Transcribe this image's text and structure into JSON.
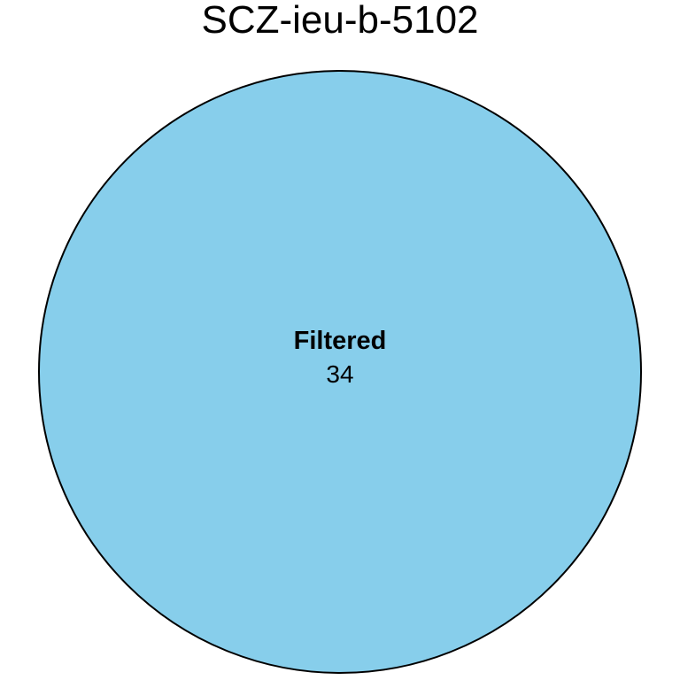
{
  "diagram": {
    "type": "venn",
    "title": "SCZ-ieu-b-5102",
    "sets": [
      {
        "label": "Filtered",
        "count": "34",
        "fill_color": "#87CEEB",
        "stroke_color": "#000000"
      }
    ]
  }
}
